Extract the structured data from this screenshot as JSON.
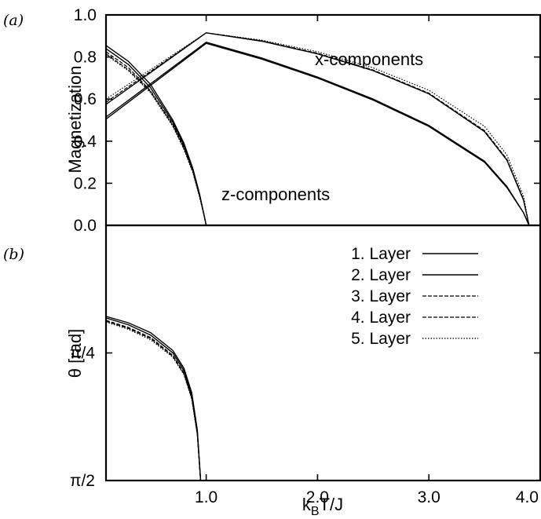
{
  "chart_data": [
    {
      "panel": "(a)",
      "type": "line",
      "xlabel": "",
      "ylabel": "Magnetization",
      "xlim": [
        0.1,
        4.0
      ],
      "ylim": [
        0.0,
        1.0
      ],
      "yticks": [
        "0.0",
        "0.2",
        "0.4",
        "0.6",
        "0.8",
        "1.0"
      ],
      "grid": false,
      "annotations": [
        "x-components",
        "z-components"
      ],
      "series": [
        {
          "name": "",
          "component": "z",
          "style": "solid",
          "x": [
            0.1,
            0.3,
            0.5,
            0.7,
            0.8,
            0.88,
            0.94,
            0.98,
            1.0
          ],
          "y": [
            0.855,
            0.78,
            0.67,
            0.5,
            0.39,
            0.27,
            0.15,
            0.05,
            0.0
          ]
        },
        {
          "name": "",
          "component": "z",
          "style": "solid",
          "x": [
            0.1,
            0.3,
            0.5,
            0.7,
            0.8,
            0.88,
            0.94,
            0.98,
            1.0
          ],
          "y": [
            0.84,
            0.765,
            0.655,
            0.49,
            0.38,
            0.265,
            0.145,
            0.05,
            0.0
          ]
        },
        {
          "name": "",
          "component": "z",
          "style": "dashed",
          "x": [
            0.1,
            0.3,
            0.5,
            0.7,
            0.8,
            0.88,
            0.94,
            0.98,
            1.0
          ],
          "y": [
            0.825,
            0.75,
            0.64,
            0.48,
            0.37,
            0.26,
            0.14,
            0.05,
            0.0
          ]
        },
        {
          "name": "",
          "component": "z",
          "style": "dashed",
          "x": [
            0.1,
            0.3,
            0.5,
            0.7,
            0.8,
            0.88,
            0.94,
            0.98,
            1.0
          ],
          "y": [
            0.815,
            0.74,
            0.635,
            0.475,
            0.365,
            0.255,
            0.14,
            0.05,
            0.0
          ]
        },
        {
          "name": "",
          "component": "z",
          "style": "dotted",
          "x": [
            0.1,
            0.3,
            0.5,
            0.7,
            0.8,
            0.88,
            0.94,
            0.98,
            1.0
          ],
          "y": [
            0.81,
            0.735,
            0.63,
            0.47,
            0.36,
            0.25,
            0.135,
            0.05,
            0.0
          ]
        },
        {
          "name": "",
          "component": "x",
          "style": "solid",
          "x": [
            0.1,
            1.0,
            1.5,
            2.0,
            2.5,
            3.0,
            3.5,
            3.7,
            3.85,
            3.9
          ],
          "y": [
            0.505,
            0.865,
            0.79,
            0.7,
            0.595,
            0.47,
            0.3,
            0.18,
            0.06,
            0.0
          ]
        },
        {
          "name": "",
          "component": "x",
          "style": "solid",
          "x": [
            0.1,
            1.0,
            1.5,
            2.0,
            2.5,
            3.0,
            3.5,
            3.7,
            3.85,
            3.9
          ],
          "y": [
            0.515,
            0.87,
            0.795,
            0.705,
            0.6,
            0.475,
            0.305,
            0.185,
            0.06,
            0.0
          ]
        },
        {
          "name": "",
          "component": "x",
          "style": "solid",
          "x": [
            0.1,
            1.0,
            1.5,
            2.0,
            2.5,
            3.0,
            3.5,
            3.7,
            3.85,
            3.9
          ],
          "y": [
            0.575,
            0.915,
            0.875,
            0.815,
            0.735,
            0.625,
            0.445,
            0.31,
            0.12,
            0.0
          ]
        },
        {
          "name": "",
          "component": "x",
          "style": "dashed",
          "x": [
            0.1,
            1.0,
            1.5,
            2.0,
            2.5,
            3.0,
            3.5,
            3.7,
            3.85,
            3.9
          ],
          "y": [
            0.585,
            0.915,
            0.877,
            0.818,
            0.738,
            0.628,
            0.45,
            0.315,
            0.125,
            0.0
          ]
        },
        {
          "name": "",
          "component": "x",
          "style": "dotted",
          "x": [
            0.1,
            1.0,
            1.5,
            2.0,
            2.5,
            3.0,
            3.5,
            3.7,
            3.85,
            3.9
          ],
          "y": [
            0.6,
            0.915,
            0.88,
            0.825,
            0.748,
            0.642,
            0.47,
            0.335,
            0.14,
            0.0
          ]
        }
      ]
    },
    {
      "panel": "(b)",
      "type": "line",
      "xlabel": "k_BT/J",
      "ylabel": "θ [rad]",
      "xlim": [
        0.1,
        4.0
      ],
      "ylim_labels_top_to_bottom": [
        "π/4",
        "π/2"
      ],
      "xticks": [
        "1.0",
        "2.0",
        "3.0",
        "4.0"
      ],
      "yticks": [
        "π/4",
        "π/2"
      ],
      "grid": false,
      "legend": {
        "position": "top-right",
        "entries": [
          "1. Layer",
          "2. Layer",
          "3. Layer",
          "4. Layer",
          "5. Layer"
        ],
        "styles": [
          "solid",
          "solid",
          "dashed",
          "dashed",
          "dotted"
        ]
      },
      "series": [
        {
          "name": "1. Layer",
          "style": "solid",
          "x": [
            0.1,
            0.3,
            0.5,
            0.7,
            0.8,
            0.87,
            0.92,
            0.95
          ],
          "y": [
            0.56,
            0.6,
            0.66,
            0.77,
            0.88,
            1.03,
            1.26,
            1.5708
          ]
        },
        {
          "name": "2. Layer",
          "style": "solid",
          "x": [
            0.1,
            0.3,
            0.5,
            0.7,
            0.8,
            0.87,
            0.92,
            0.95
          ],
          "y": [
            0.57,
            0.612,
            0.675,
            0.785,
            0.895,
            1.045,
            1.27,
            1.5708
          ]
        },
        {
          "name": "3. Layer",
          "style": "dashed",
          "x": [
            0.1,
            0.3,
            0.5,
            0.7,
            0.8,
            0.87,
            0.92,
            0.95
          ],
          "y": [
            0.585,
            0.628,
            0.69,
            0.8,
            0.91,
            1.06,
            1.28,
            1.5708
          ]
        },
        {
          "name": "4. Layer",
          "style": "dashed",
          "x": [
            0.1,
            0.3,
            0.5,
            0.7,
            0.8,
            0.87,
            0.92,
            0.95
          ],
          "y": [
            0.59,
            0.634,
            0.697,
            0.806,
            0.915,
            1.065,
            1.285,
            1.5708
          ]
        },
        {
          "name": "5. Layer",
          "style": "dotted",
          "x": [
            0.1,
            0.3,
            0.5,
            0.7,
            0.8,
            0.87,
            0.92,
            0.95
          ],
          "y": [
            0.595,
            0.64,
            0.704,
            0.812,
            0.92,
            1.07,
            1.29,
            1.5708
          ]
        }
      ]
    }
  ]
}
